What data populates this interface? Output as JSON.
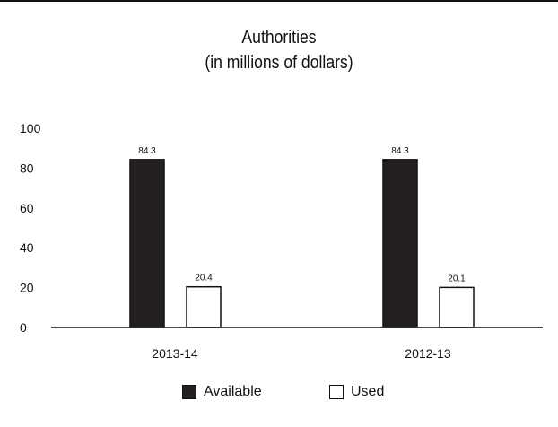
{
  "chart_data": {
    "type": "bar",
    "title": "Authorities",
    "subtitle": "(in millions of dollars)",
    "categories": [
      "2013-14",
      "2012-13"
    ],
    "series": [
      {
        "name": "Available",
        "values": [
          84.3,
          84.3
        ],
        "labels": [
          "84.3",
          "84.3"
        ],
        "color": "#231f20"
      },
      {
        "name": "Used",
        "values": [
          20.4,
          20.1
        ],
        "labels": [
          "20.4",
          "20.1"
        ],
        "color": "#ffffff"
      }
    ],
    "y_ticks": [
      "0",
      "20",
      "40",
      "60",
      "80",
      "100"
    ],
    "ylim": [
      0,
      100
    ],
    "grid": false,
    "legend_position": "bottom"
  }
}
